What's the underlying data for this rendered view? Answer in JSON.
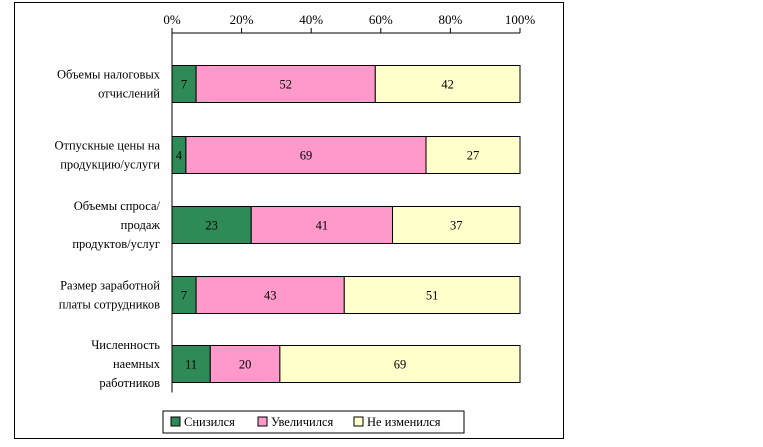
{
  "chart_data": {
    "type": "bar",
    "orientation": "horizontal",
    "stacked": "percent",
    "title": "",
    "xlabel": "",
    "ylabel": "",
    "xlim": [
      0,
      100
    ],
    "x_ticks": [
      "0%",
      "20%",
      "40%",
      "60%",
      "80%",
      "100%"
    ],
    "x_tick_values": [
      0,
      20,
      40,
      60,
      80,
      100
    ],
    "x_axis_position": "top",
    "grid": false,
    "legend_position": "bottom",
    "categories": [
      [
        "Объемы налоговых",
        "отчислений"
      ],
      [
        "Отпускные цены на",
        "продукцию/услуги"
      ],
      [
        "Объемы спроса/",
        "продаж",
        "продуктов/услуг"
      ],
      [
        "Размер заработной",
        "платы сотрудников"
      ],
      [
        "Численность",
        "наемных",
        "работников"
      ]
    ],
    "series": [
      {
        "name": "Снизился",
        "color": "#2e8b57",
        "values": [
          7,
          4,
          23,
          7,
          11
        ],
        "labels": [
          "7",
          "4",
          "23",
          "7",
          "11"
        ]
      },
      {
        "name": "Увеличился",
        "color": "#ff99cc",
        "values": [
          52,
          69,
          41,
          43,
          20
        ],
        "labels": [
          "52",
          "69",
          "41",
          "43",
          "20"
        ]
      },
      {
        "name": "Не изменился",
        "color": "#ffffcc",
        "values": [
          42,
          27,
          37,
          51,
          69
        ],
        "labels": [
          "42",
          "27",
          "37",
          "51",
          "69"
        ]
      }
    ]
  }
}
